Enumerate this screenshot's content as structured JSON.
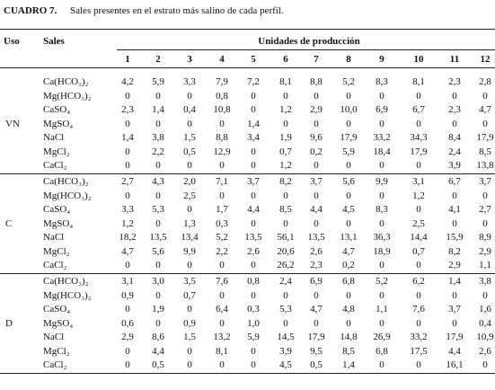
{
  "title": {
    "label": "CUADRO 7.",
    "text": "Sales presentes en el estrato más salino de cada perfil."
  },
  "header": {
    "uso": "Uso",
    "sales": "Sales",
    "group": "Unidades de producción",
    "columns": [
      "1",
      "2",
      "3",
      "4",
      "5",
      "6",
      "7",
      "8",
      "9",
      "10",
      "11",
      "12"
    ]
  },
  "groups": [
    {
      "uso": "VN",
      "rows": [
        {
          "sal": "Ca(HCO₃)₂",
          "values": [
            "4,2",
            "5,9",
            "3,3",
            "7,9",
            "7,2",
            "8,1",
            "8,8",
            "5,2",
            "8,3",
            "8,1",
            "2,3",
            "2,8"
          ]
        },
        {
          "sal": "Mg(HCO₃)₂",
          "values": [
            "0",
            "0",
            "0",
            "0,8",
            "0",
            "0",
            "0",
            "0",
            "0",
            "0",
            "0",
            "0"
          ]
        },
        {
          "sal": "CaSO₄",
          "values": [
            "2,3",
            "1,4",
            "0,4",
            "10,8",
            "0",
            "1,2",
            "2,9",
            "10,0",
            "6,9",
            "6,7",
            "2,3",
            "4,7"
          ]
        },
        {
          "sal": "MgSO₄",
          "values": [
            "0",
            "0",
            "0",
            "0",
            "1,4",
            "0",
            "0",
            "0",
            "0",
            "0",
            "0",
            "0"
          ]
        },
        {
          "sal": "NaCl",
          "values": [
            "1,4",
            "3,8",
            "1,5",
            "8,8",
            "3,4",
            "1,9",
            "9,6",
            "17,9",
            "33,2",
            "34,3",
            "8,4",
            "17,9"
          ]
        },
        {
          "sal": "MgCl₂",
          "values": [
            "0",
            "2,2",
            "0,5",
            "12,9",
            "0",
            "0,7",
            "0,2",
            "5,9",
            "18,4",
            "17,9",
            "2,4",
            "8,5"
          ]
        },
        {
          "sal": "CaCl₂",
          "values": [
            "0",
            "0",
            "0",
            "0",
            "0",
            "1,2",
            "0",
            "0",
            "0",
            "0",
            "3,9",
            "13,8"
          ]
        }
      ]
    },
    {
      "uso": "C",
      "rows": [
        {
          "sal": "Ca(HCO₃)₂",
          "values": [
            "2,7",
            "4,3",
            "2,0",
            "7,1",
            "3,7",
            "8,2",
            "3,7",
            "5,6",
            "9,9",
            "3,1",
            "6,7",
            "3,7"
          ]
        },
        {
          "sal": "Mg(HCO₃)₂",
          "values": [
            "0",
            "0",
            "2,5",
            "0",
            "0",
            "0",
            "0",
            "0",
            "0",
            "1,2",
            "0",
            "0"
          ]
        },
        {
          "sal": "CaSO₄",
          "values": [
            "3,3",
            "5,3",
            "0",
            "1,7",
            "4,4",
            "8,5",
            "4,4",
            "4,5",
            "8,3",
            "0",
            "4,1",
            "2,7"
          ]
        },
        {
          "sal": "MgSO₄",
          "values": [
            "1,2",
            "0",
            "1,3",
            "0,3",
            "0",
            "0",
            "0",
            "0",
            "0",
            "2,5",
            "0",
            "0"
          ]
        },
        {
          "sal": "NaCl",
          "values": [
            "18,2",
            "13,5",
            "13,4",
            "5,2",
            "13,5",
            "56,1",
            "13,5",
            "13,1",
            "36,3",
            "14,4",
            "15,9",
            "8,9"
          ]
        },
        {
          "sal": "MgCl₂",
          "values": [
            "4,7",
            "5,6",
            "9,9",
            "2,2",
            "2,6",
            "20,6",
            "2,6",
            "4,7",
            "18,9",
            "0,7",
            "8,2",
            "2,9"
          ]
        },
        {
          "sal": "CaCl₂",
          "values": [
            "0",
            "0",
            "0",
            "0",
            "0",
            "26,2",
            "2,3",
            "0,2",
            "0",
            "0",
            "2,9",
            "1,1"
          ]
        }
      ]
    },
    {
      "uso": "D",
      "rows": [
        {
          "sal": "Ca(HCO₃)₂",
          "values": [
            "3,1",
            "3,0",
            "3,5",
            "7,6",
            "0,8",
            "2,4",
            "6,9",
            "6,8",
            "5,2",
            "6,2",
            "1,4",
            "3,8"
          ]
        },
        {
          "sal": "Mg(HCO₃)₂",
          "values": [
            "0,9",
            "0",
            "0,7",
            "0",
            "0",
            "0",
            "0",
            "0",
            "0",
            "0",
            "0",
            "0"
          ]
        },
        {
          "sal": "CaSO₄",
          "values": [
            "0",
            "1,9",
            "0",
            "6,4",
            "0,3",
            "5,3",
            "4,7",
            "4,8",
            "1,1",
            "7,6",
            "3,7",
            "1,6"
          ]
        },
        {
          "sal": "MgSO₄",
          "values": [
            "0,6",
            "0",
            "0,9",
            "0",
            "1,0",
            "0",
            "0",
            "0",
            "0",
            "0",
            "0",
            "0,4"
          ]
        },
        {
          "sal": "NaCl",
          "values": [
            "2,9",
            "8,6",
            "1,5",
            "13,2",
            "5,9",
            "14,5",
            "17,9",
            "14,8",
            "26,9",
            "33,2",
            "17,9",
            "10,9"
          ]
        },
        {
          "sal": "MgCl₂",
          "values": [
            "0",
            "4,4",
            "0",
            "8,1",
            "0",
            "3,9",
            "9,5",
            "8,5",
            "6,8",
            "17,5",
            "4,4",
            "2,6"
          ]
        },
        {
          "sal": "CaCl₂",
          "values": [
            "0",
            "0,5",
            "0",
            "0",
            "0",
            "4,5",
            "0,5",
            "1,4",
            "0",
            "0",
            "16,1",
            "0"
          ]
        }
      ]
    }
  ]
}
